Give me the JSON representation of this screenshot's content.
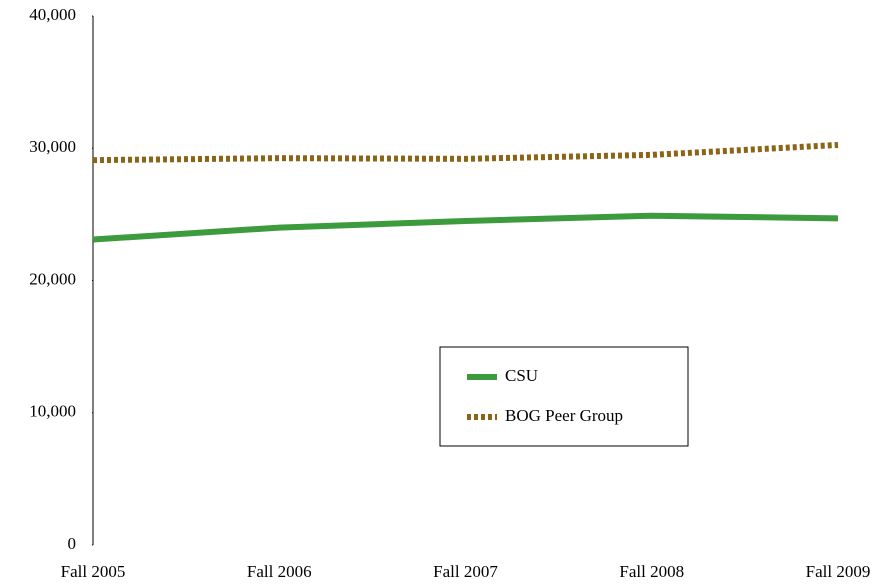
{
  "chart_data": {
    "type": "line",
    "categories": [
      "Fall 2005",
      "Fall 2006",
      "Fall 2007",
      "Fall 2008",
      "Fall 2009"
    ],
    "series": [
      {
        "name": "CSU",
        "color": "#3c9b3c",
        "dash": false,
        "values": [
          23100,
          24000,
          24500,
          24900,
          24700
        ]
      },
      {
        "name": "BOG Peer Group",
        "color": "#8c6416",
        "dash": true,
        "values": [
          29100,
          29250,
          29200,
          29500,
          30250
        ]
      }
    ],
    "ylim": [
      0,
      40000
    ],
    "yticks": [
      {
        "value": 0,
        "label": "0"
      },
      {
        "value": 10000,
        "label": "10,000"
      },
      {
        "value": 20000,
        "label": "20,000"
      },
      {
        "value": 30000,
        "label": "30,000"
      },
      {
        "value": 40000,
        "label": "40,000"
      }
    ],
    "grid": false,
    "legend": "center"
  }
}
